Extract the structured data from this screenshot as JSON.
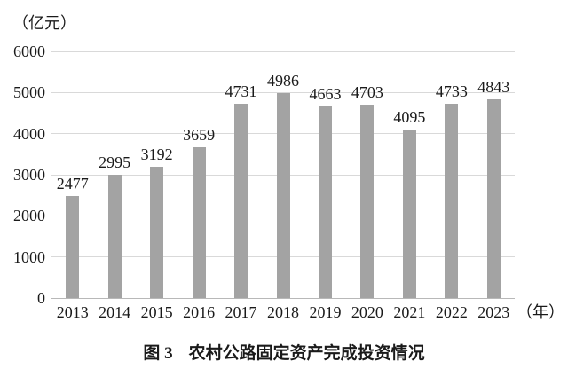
{
  "chart_data": {
    "type": "bar",
    "title": "图 3 农村公路固定资产完成投资情况",
    "unit_label": "（亿元）",
    "x_unit_label": "（年）",
    "categories": [
      "2013",
      "2014",
      "2015",
      "2016",
      "2017",
      "2018",
      "2019",
      "2020",
      "2021",
      "2022",
      "2023"
    ],
    "values": [
      2477,
      2995,
      3192,
      3659,
      4731,
      4986,
      4663,
      4703,
      4095,
      4733,
      4843
    ],
    "xlabel": "年",
    "ylabel": "亿元",
    "ylim": [
      0,
      6000
    ],
    "yticks": [
      0,
      1000,
      2000,
      3000,
      4000,
      5000,
      6000
    ],
    "grid": true,
    "legend": "none",
    "bar_color": "#a3a3a3",
    "gridline_color": "#d9d9d9",
    "axis_color": "#b8b8b8",
    "text_color": "#1a1a1a",
    "background_color": "#ffffff"
  },
  "caption": {
    "prefix": "图 3",
    "text": "农村公路固定资产完成投资情况"
  }
}
